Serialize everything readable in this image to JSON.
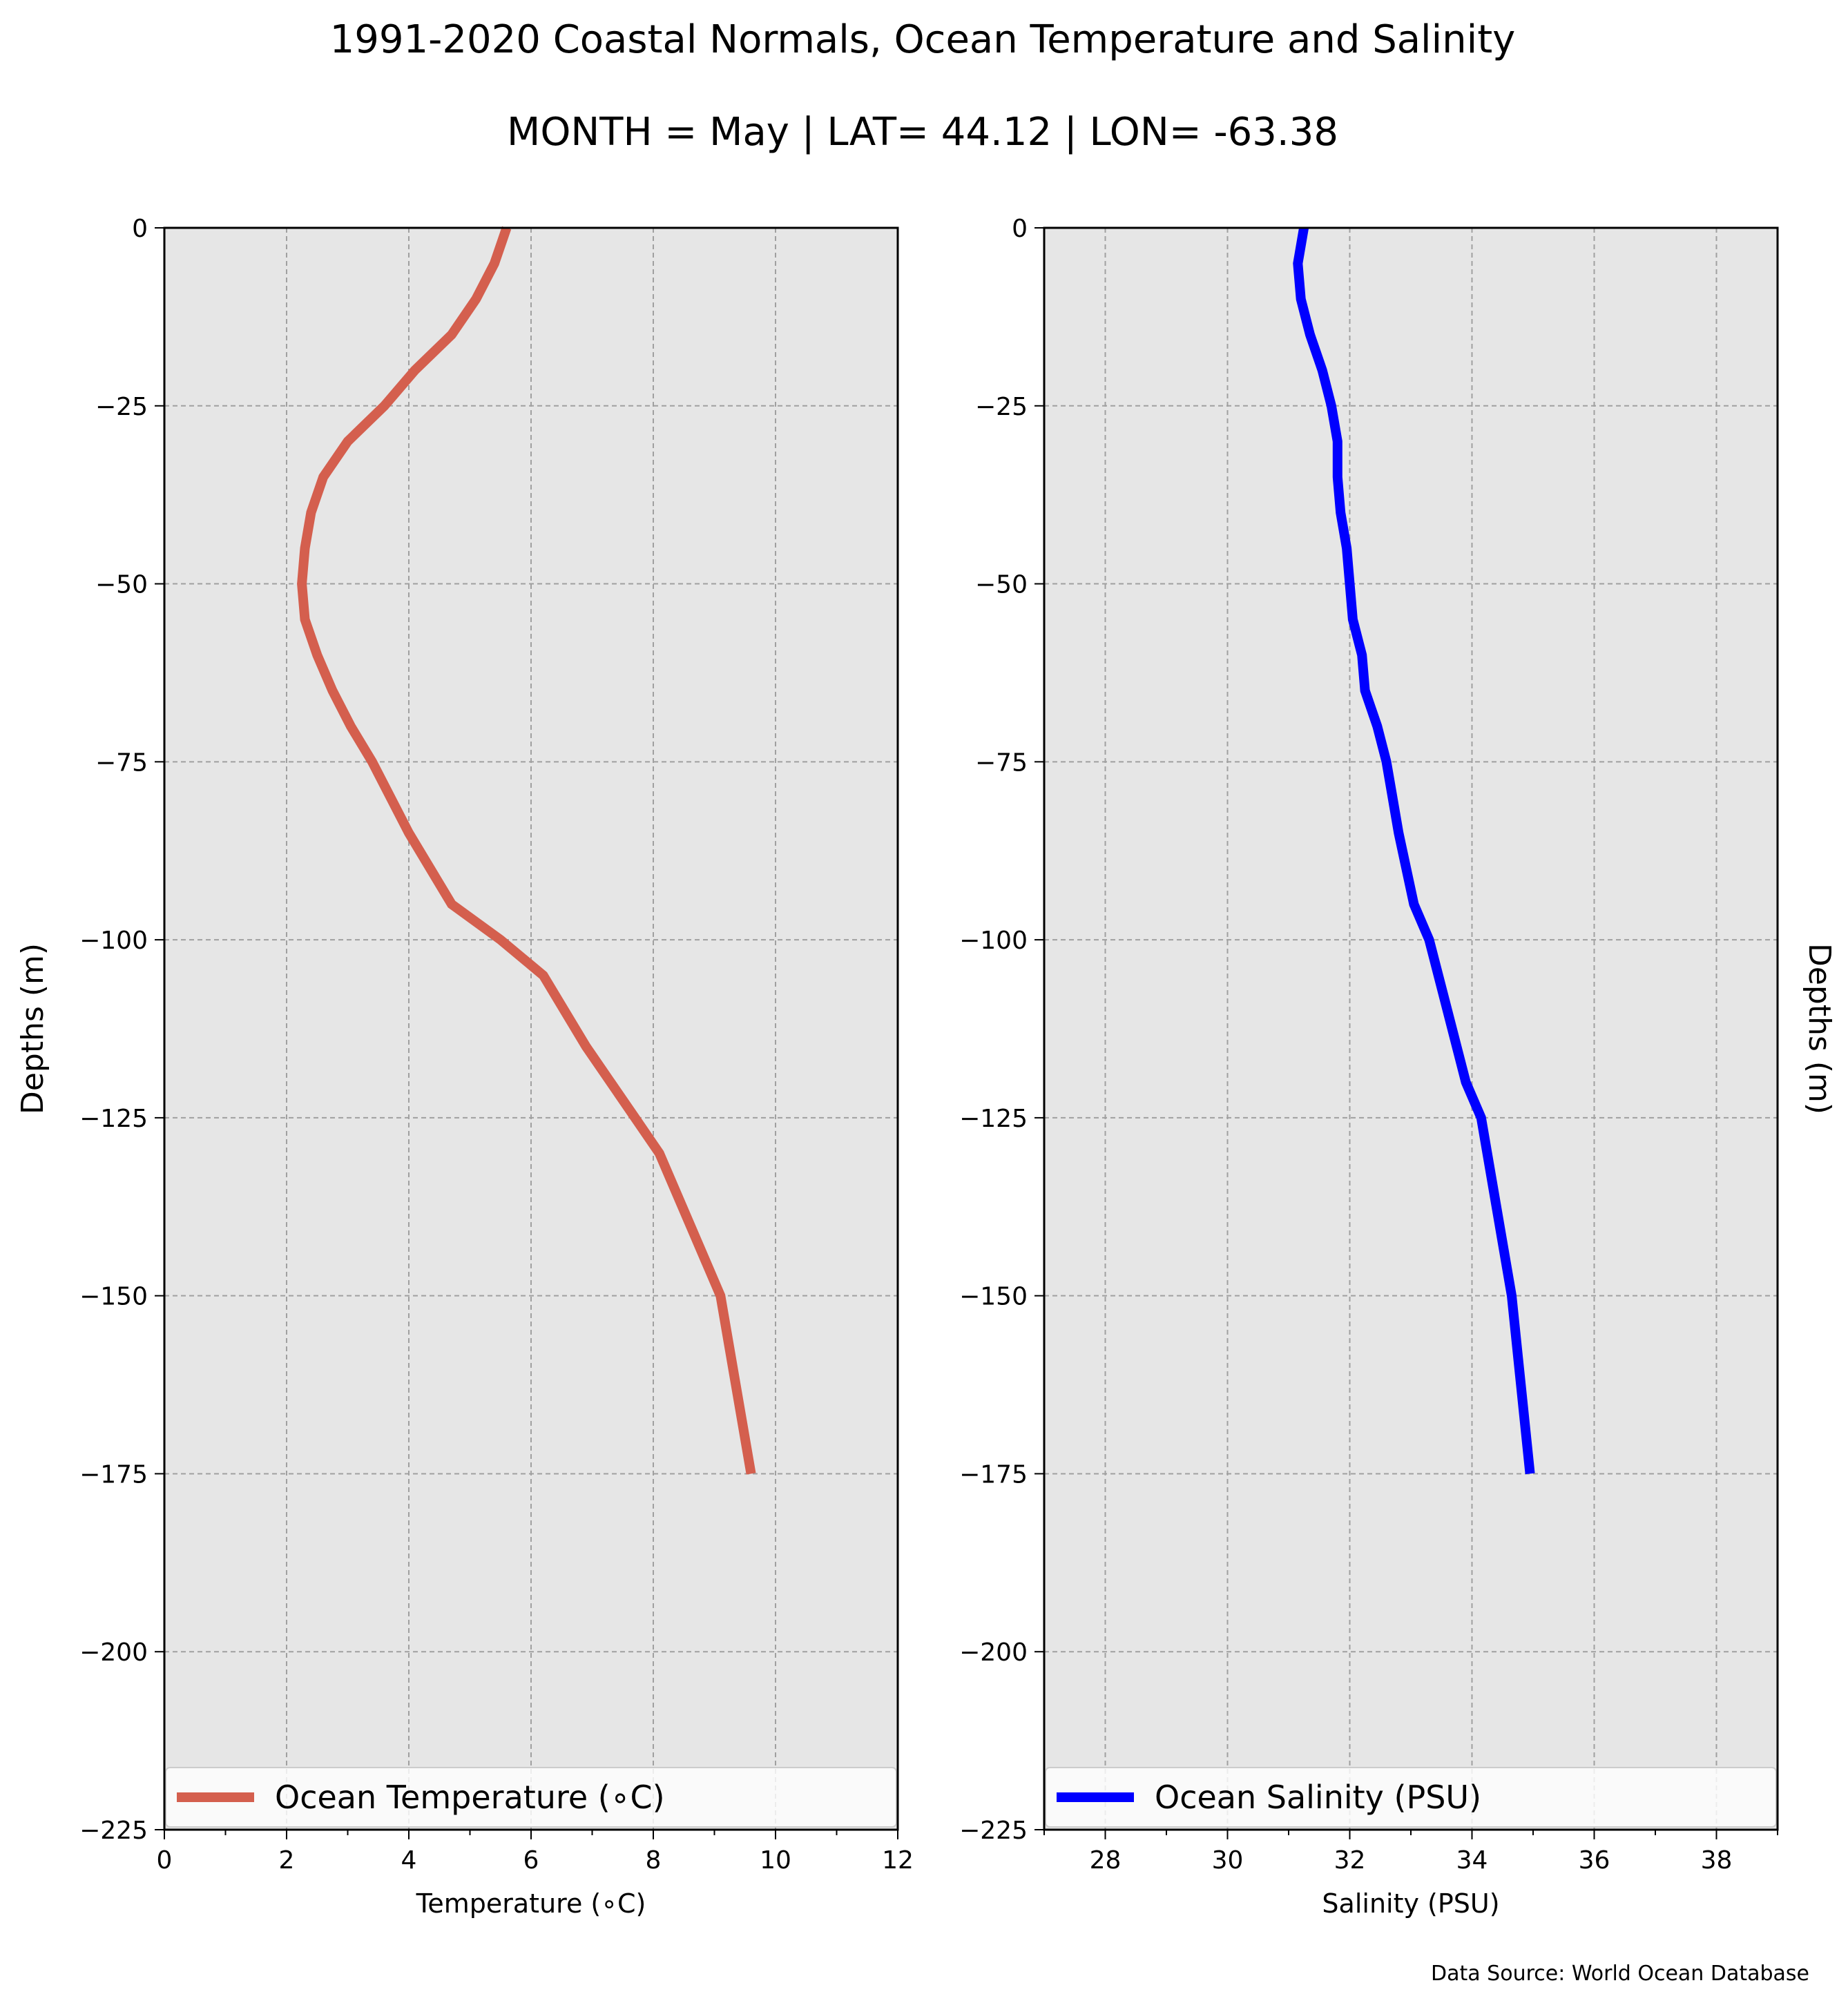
{
  "title": "1991-2020 Coastal Normals, Ocean Temperature and Salinity",
  "subtitle": "MONTH = May | LAT= 44.12 | LON= -63.38",
  "source": "Data Source: World Ocean Database",
  "chart_data": [
    {
      "type": "line",
      "xlabel": "Temperature (∘C)",
      "ylabel": "Depths (m)",
      "xlim": [
        0,
        12
      ],
      "ylim": [
        -225,
        0
      ],
      "xticks": [
        0,
        2,
        4,
        6,
        8,
        10,
        12
      ],
      "xtick_labels": [
        "0",
        "2",
        "4",
        "6",
        "8",
        "10",
        "12"
      ],
      "yticks": [
        0,
        -25,
        -50,
        -75,
        -100,
        -125,
        -150,
        -175,
        -200,
        -225
      ],
      "ytick_labels": [
        "0",
        "−25",
        "−50",
        "−75",
        "−100",
        "−125",
        "−150",
        "−175",
        "−200",
        "−225"
      ],
      "grid": true,
      "legend_position": "bottom",
      "series": [
        {
          "name": "Ocean Temperature (∘C)",
          "color": "#d45f4e",
          "x": [
            5.6,
            5.4,
            5.1,
            4.7,
            4.1,
            3.6,
            3.0,
            2.6,
            2.4,
            2.3,
            2.25,
            2.3,
            2.5,
            2.75,
            3.05,
            3.4,
            4.0,
            4.7,
            5.5,
            6.2,
            6.9,
            7.7,
            8.1,
            8.6,
            9.1,
            9.6
          ],
          "y": [
            0,
            -5,
            -10,
            -15,
            -20,
            -25,
            -30,
            -35,
            -40,
            -45,
            -50,
            -55,
            -60,
            -65,
            -70,
            -75,
            -85,
            -95,
            -100,
            -105,
            -115,
            -125,
            -130,
            -140,
            -150,
            -175
          ]
        }
      ]
    },
    {
      "type": "line",
      "xlabel": "Salinity (PSU)",
      "ylabel": "Depths (m)",
      "xlim": [
        27,
        39
      ],
      "ylim": [
        -225,
        0
      ],
      "xticks": [
        28,
        30,
        32,
        34,
        36,
        38
      ],
      "xtick_labels": [
        "28",
        "30",
        "32",
        "34",
        "36",
        "38"
      ],
      "yticks": [
        0,
        -25,
        -50,
        -75,
        -100,
        -125,
        -150,
        -175,
        -200,
        -225
      ],
      "ytick_labels": [
        "0",
        "−25",
        "−50",
        "−75",
        "−100",
        "−125",
        "−150",
        "−175",
        "−200",
        "−225"
      ],
      "grid": true,
      "legend_position": "bottom",
      "series": [
        {
          "name": "Ocean Salinity (PSU)",
          "color": "#0000ff",
          "x": [
            31.25,
            31.15,
            31.2,
            31.35,
            31.55,
            31.7,
            31.8,
            31.8,
            31.85,
            31.95,
            32.0,
            32.05,
            32.2,
            32.25,
            32.45,
            32.6,
            32.8,
            33.05,
            33.3,
            33.6,
            33.9,
            34.15,
            34.45,
            34.65,
            34.95
          ],
          "y": [
            0,
            -5,
            -10,
            -15,
            -20,
            -25,
            -30,
            -35,
            -40,
            -45,
            -50,
            -55,
            -60,
            -65,
            -70,
            -75,
            -85,
            -95,
            -100,
            -110,
            -120,
            -125,
            -140,
            -150,
            -175
          ]
        }
      ]
    }
  ]
}
